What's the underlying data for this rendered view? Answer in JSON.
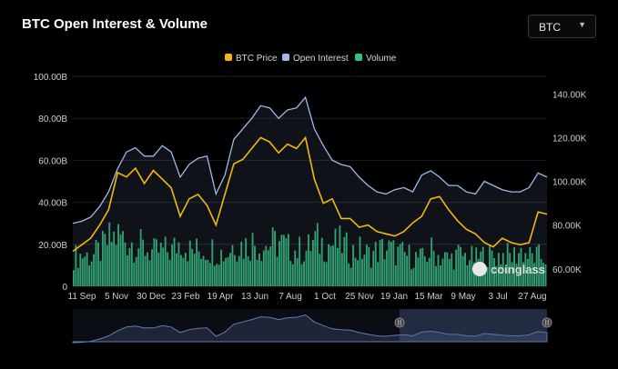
{
  "title": "BTC Open Interest & Volume",
  "selector": {
    "value": "BTC"
  },
  "watermark": "coinglass",
  "legend": [
    {
      "name": "BTC Price",
      "color": "#f0b90b"
    },
    {
      "name": "Open Interest",
      "color": "#9fb9ea"
    },
    {
      "name": "Volume",
      "color": "#2fc57d"
    }
  ],
  "chart_data": {
    "type": "line",
    "x_ticks": [
      "11 Sep",
      "5 Nov",
      "30 Dec",
      "23 Feb",
      "19 Apr",
      "13 Jun",
      "7 Aug",
      "1 Oct",
      "25 Nov",
      "19 Jan",
      "15 Mar",
      "9 May",
      "3 Jul",
      "27 Aug"
    ],
    "y_left": {
      "ticks": [
        "0",
        "20.00B",
        "40.00B",
        "60.00B",
        "80.00B",
        "100.00B"
      ],
      "range": [
        0,
        100
      ]
    },
    "y_right": {
      "ticks": [
        "60.00K",
        "80.00K",
        "100.00K",
        "120.00K",
        "140.00K"
      ],
      "range": [
        52,
        148
      ]
    },
    "series": [
      {
        "name": "Open Interest",
        "axis": "left",
        "unit": "B",
        "values": [
          30,
          31,
          33,
          38,
          45,
          56,
          64,
          66,
          62,
          62,
          67,
          64,
          52,
          58,
          61,
          62,
          44,
          53,
          70,
          75,
          80,
          86,
          85,
          80,
          84,
          85,
          90,
          75,
          67,
          60,
          58,
          57,
          52,
          48,
          45,
          44,
          46,
          47,
          45,
          53,
          55,
          52,
          48,
          48,
          45,
          44,
          50,
          48,
          46,
          45,
          45,
          47,
          54,
          52
        ]
      },
      {
        "name": "BTC Price",
        "axis": "right",
        "unit": "K",
        "values": [
          68,
          71,
          74,
          80,
          87,
          104,
          102,
          106,
          99,
          105,
          101,
          97,
          84,
          92,
          94,
          89,
          80,
          94,
          108,
          110,
          115,
          120,
          118,
          113,
          117,
          115,
          120,
          101,
          90,
          92,
          83,
          83,
          79,
          80,
          77,
          76,
          75,
          77,
          81,
          84,
          92,
          93,
          87,
          82,
          78,
          76,
          72,
          70,
          74,
          72,
          71,
          72,
          86,
          85
        ]
      },
      {
        "name": "Volume",
        "axis": "left",
        "unit": "B",
        "values": [
          14,
          15,
          14,
          17,
          22,
          24,
          22,
          20,
          18,
          16,
          17,
          17,
          22,
          17,
          17,
          18,
          17,
          15,
          21,
          19,
          21,
          19,
          20,
          21,
          18,
          17,
          17,
          22,
          20,
          20,
          20,
          16,
          17,
          15,
          17,
          18,
          16,
          15,
          14,
          13,
          17,
          14,
          13,
          15,
          14,
          13,
          15,
          14,
          15,
          14,
          17,
          14,
          14,
          14
        ]
      }
    ]
  }
}
